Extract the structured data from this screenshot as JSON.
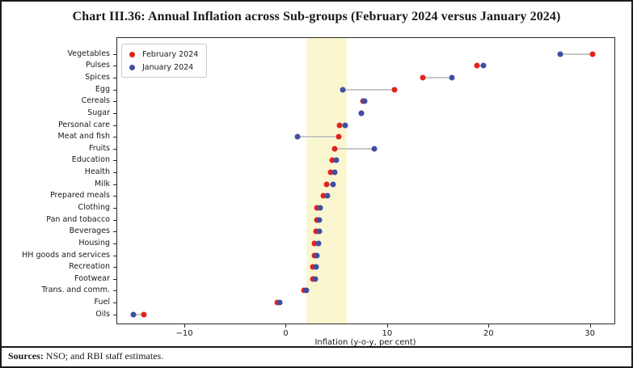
{
  "title": "Chart III.36: Annual Inflation across Sub-groups (February 2024 versus January 2024)",
  "footer": {
    "sources_label": "Sources:",
    "sources_text": " NSO; and RBI staff estimates."
  },
  "chart_data": {
    "type": "scatter",
    "subtype": "dumbbell-dot-plot",
    "title": "Chart III.36: Annual Inflation across Sub-groups (February 2024 versus January 2024)",
    "xlabel": "Inflation (y-o-y, per cent)",
    "ylabel": "",
    "grid": false,
    "legend_position": "upper-left",
    "xlim": [
      -16.7,
      32.5
    ],
    "x_ticks": [
      {
        "value": -10,
        "label": "−10"
      },
      {
        "value": 0,
        "label": "0"
      },
      {
        "value": 10,
        "label": "10"
      },
      {
        "value": 20,
        "label": "20"
      },
      {
        "value": 30,
        "label": "30"
      }
    ],
    "tolerance_band": {
      "from": 2,
      "to": 6,
      "color": "#FAF7D0"
    },
    "connector_color": "#c8c8c8",
    "categories": [
      "Vegetables",
      "Pulses",
      "Spices",
      "Egg",
      "Cereals",
      "Sugar",
      "Personal care",
      "Meat and fish",
      "Fruits",
      "Education",
      "Health",
      "Milk",
      "Prepared meals",
      "Clothing",
      "Pan and tobacco",
      "Beverages",
      "Housing",
      "HH goods and services",
      "Recreation",
      "Footwear",
      "Trans. and comm.",
      "Fuel",
      "Oils"
    ],
    "series": [
      {
        "name": "February 2024",
        "color": "#e3211c",
        "values": [
          30.3,
          18.9,
          13.5,
          10.7,
          7.6,
          7.5,
          5.3,
          5.2,
          4.8,
          4.6,
          4.4,
          4.0,
          3.7,
          3.1,
          3.1,
          3.0,
          2.8,
          2.8,
          2.7,
          2.7,
          1.8,
          -0.8,
          -14.0
        ]
      },
      {
        "name": "January 2024",
        "color": "#3e4fa3",
        "values": [
          27.1,
          19.5,
          16.4,
          5.6,
          7.8,
          7.5,
          5.9,
          1.2,
          8.7,
          5.0,
          4.8,
          4.7,
          4.1,
          3.4,
          3.3,
          3.3,
          3.2,
          3.1,
          3.0,
          2.9,
          2.0,
          -0.6,
          -15.0
        ]
      }
    ]
  }
}
